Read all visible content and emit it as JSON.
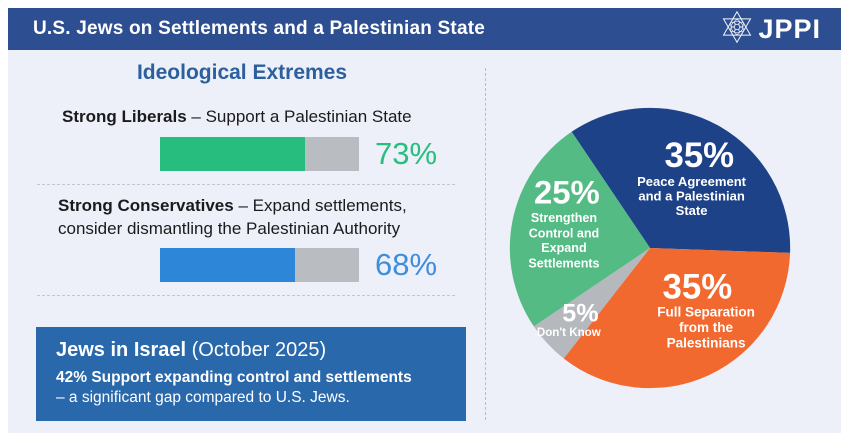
{
  "header": {
    "title": "U.S. Jews on Settlements and a Palestinian State",
    "logo_text": "JPPI"
  },
  "left": {
    "heading": "Ideological Extremes",
    "liberals": {
      "label_bold": "Strong Liberals",
      "label_rest": " – Support a Palestinian State",
      "value": 73,
      "value_label": "73%"
    },
    "conservatives": {
      "label_bold": "Strong Conservatives",
      "label_rest_line1": " – Expand settlements,",
      "label_rest_line2": "consider dismantling the Palestinian Authority",
      "value": 68,
      "value_label": "68%"
    },
    "israel_box": {
      "title_bold": "Jews in Israel",
      "title_rest": " (October 2025)",
      "line2": "42% Support expanding control and settlements",
      "line3": "– a significant gap compared to U.S. Jews."
    }
  },
  "pie": {
    "slices": [
      {
        "name": "Peace Agreement and a Palestinian State",
        "value": 35,
        "pct_label": "35%",
        "color": "#1e4287",
        "lines": [
          "Peace Agreement",
          "and a Palestinian",
          "State"
        ]
      },
      {
        "name": "Full Separation from the Palestinians",
        "value": 35,
        "pct_label": "35%",
        "color": "#f2692f",
        "lines": [
          "Full Separation",
          "from the",
          "Palestinians"
        ]
      },
      {
        "name": "Don't Know",
        "value": 5,
        "pct_label": "5%",
        "color": "#b5b8bc",
        "lines": [
          "Don't Know"
        ]
      },
      {
        "name": "Strengthen Control and Expand Settlements",
        "value": 25,
        "pct_label": "25%",
        "color": "#55bb85",
        "lines": [
          "Strengthen",
          "Control and",
          "Expand",
          "Settlements"
        ]
      }
    ]
  },
  "colors": {
    "header_bg": "#2d4f92",
    "heading_text": "#2b5f9e",
    "bar_green": "#26bd7e",
    "bar_blue": "#2e86d8",
    "bar_track": "#b9bcc0",
    "value_green": "#2abd80",
    "value_blue": "#3e8edd",
    "box_bg": "#2868ab",
    "canvas_bg": "#edf0f8"
  },
  "chart_data": [
    {
      "type": "bar",
      "title": "Ideological Extremes",
      "categories": [
        "Strong Liberals – Support a Palestinian State",
        "Strong Conservatives – Expand settlements, consider dismantling the Palestinian Authority"
      ],
      "values": [
        73,
        68
      ],
      "unit": "%",
      "xlim": [
        0,
        100
      ],
      "bar_colors": [
        "#26bd7e",
        "#2e86d8"
      ]
    },
    {
      "type": "pie",
      "title": "U.S. Jews on Settlements and a Palestinian State",
      "labels": [
        "Peace Agreement and a Palestinian State",
        "Full Separation from the Palestinians",
        "Don't Know",
        "Strengthen Control and Expand Settlements"
      ],
      "values": [
        35,
        35,
        5,
        25
      ],
      "colors": [
        "#1e4287",
        "#f2692f",
        "#b5b8bc",
        "#55bb85"
      ],
      "legend_position": "inside"
    },
    {
      "type": "bar",
      "title": "Jews in Israel (October 2025)",
      "categories": [
        "Support expanding control and settlements"
      ],
      "values": [
        42
      ],
      "unit": "%",
      "note": "– a significant gap compared to U.S. Jews."
    }
  ]
}
